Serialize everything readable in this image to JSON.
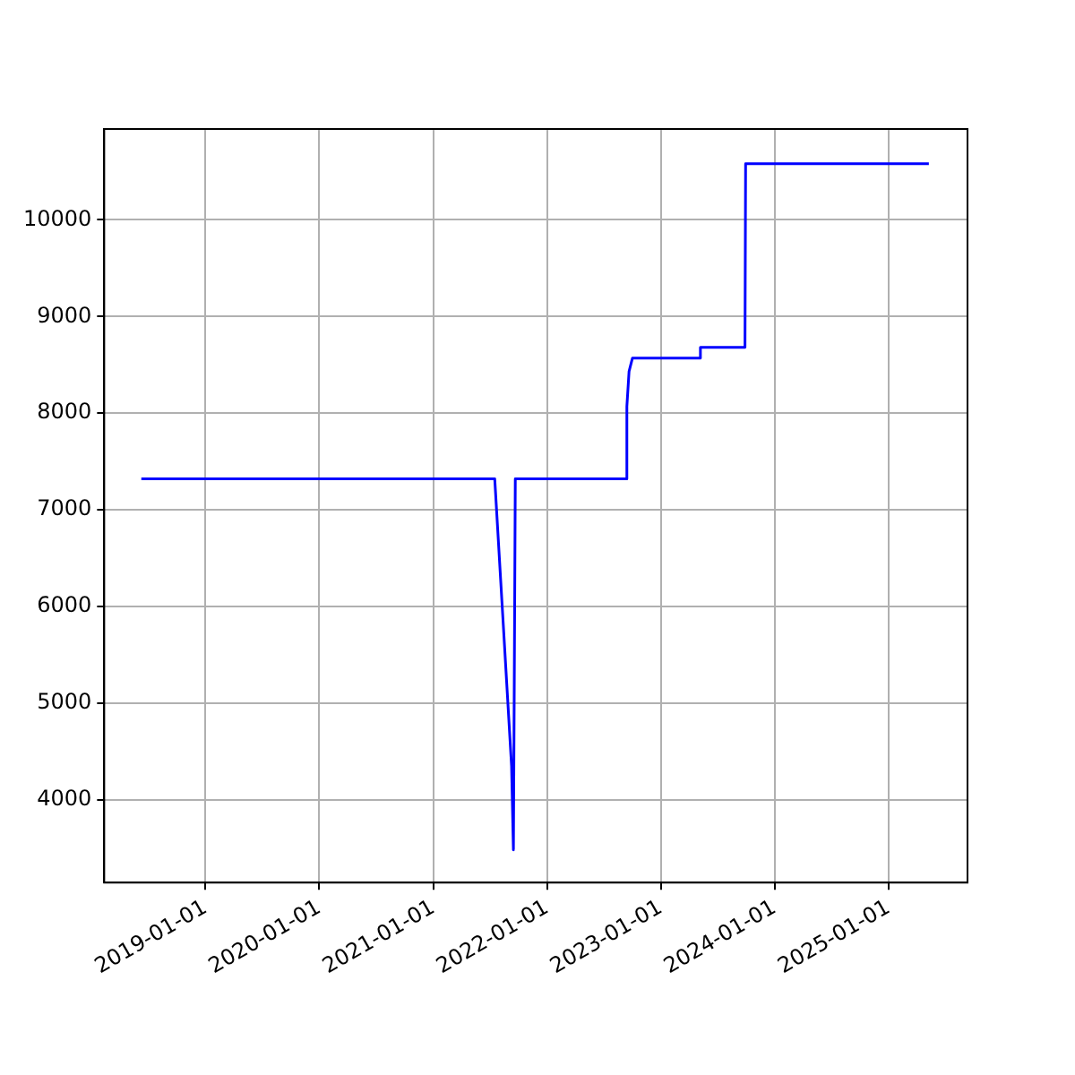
{
  "chart_data": {
    "type": "line",
    "x": [
      "2018-06-09",
      "2021-07-17",
      "2021-09-09",
      "2021-09-15",
      "2021-09-21",
      "2022-09-12",
      "2022-09-14",
      "2022-09-21",
      "2022-10-02",
      "2023-05-06",
      "2023-05-08",
      "2023-09-28",
      "2023-09-30",
      "2025-05-10"
    ],
    "series": [
      {
        "color": "#0000ff",
        "values": [
          7320,
          7320,
          4350,
          3480,
          7320,
          7320,
          8070,
          8430,
          8570,
          8570,
          8680,
          8680,
          10580,
          10580
        ]
      }
    ],
    "xlim": [
      "2018-02-10",
      "2025-09-11"
    ],
    "xticks": [
      "2019-01-01",
      "2020-01-01",
      "2021-01-01",
      "2022-01-01",
      "2023-01-01",
      "2024-01-01",
      "2025-01-01"
    ],
    "ylim": [
      3140,
      10940
    ],
    "yticks": [
      4000,
      5000,
      6000,
      7000,
      8000,
      9000,
      10000
    ],
    "grid": true,
    "legend": false,
    "marker": "none",
    "line_style": "solid"
  }
}
